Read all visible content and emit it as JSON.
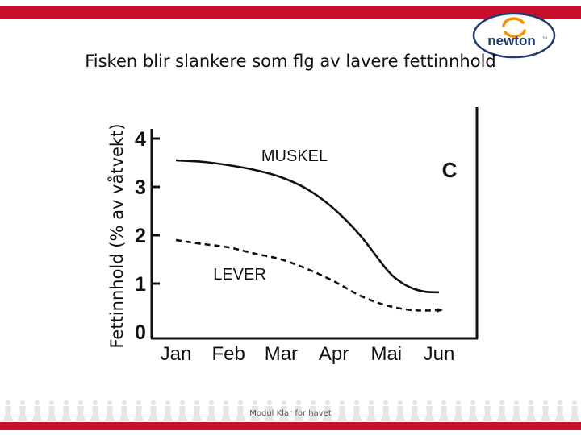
{
  "slide": {
    "title": "Fisken blir slankere som flg av lavere fettinnhold",
    "footer": "Modul Klar for havet"
  },
  "logo": {
    "text": "newton",
    "tm": "TM",
    "icon": "newton-swirl-logo"
  },
  "colors": {
    "accent": "#c8102e",
    "logo_orange": "#f29200",
    "logo_navy": "#1f3a6e"
  },
  "chart_data": {
    "type": "line",
    "panel_label": "C",
    "categories": [
      "Jan",
      "Feb",
      "Mar",
      "Apr",
      "Mai",
      "Jun"
    ],
    "ylabel": "Fettinnhold (% av våtvekt)",
    "xlabel": "",
    "ylim": [
      0,
      4
    ],
    "yticks": [
      "0",
      "1",
      "2",
      "3",
      "4"
    ],
    "grid": false,
    "series": [
      {
        "name": "MUSKEL",
        "style": "solid",
        "x": [
          0,
          0.5,
          1,
          1.5,
          2,
          2.5,
          3,
          3.5,
          4,
          4.25,
          4.5,
          4.75,
          5
        ],
        "y": [
          3.55,
          3.52,
          3.45,
          3.35,
          3.2,
          2.95,
          2.55,
          2.0,
          1.3,
          1.05,
          0.9,
          0.83,
          0.82
        ]
      },
      {
        "name": "LEVER",
        "style": "dashed",
        "x": [
          0,
          0.5,
          1,
          1.5,
          2,
          2.5,
          3,
          3.5,
          4,
          4.5,
          5
        ],
        "y": [
          1.9,
          1.82,
          1.75,
          1.62,
          1.5,
          1.3,
          1.05,
          0.75,
          0.55,
          0.45,
          0.45
        ]
      }
    ]
  }
}
